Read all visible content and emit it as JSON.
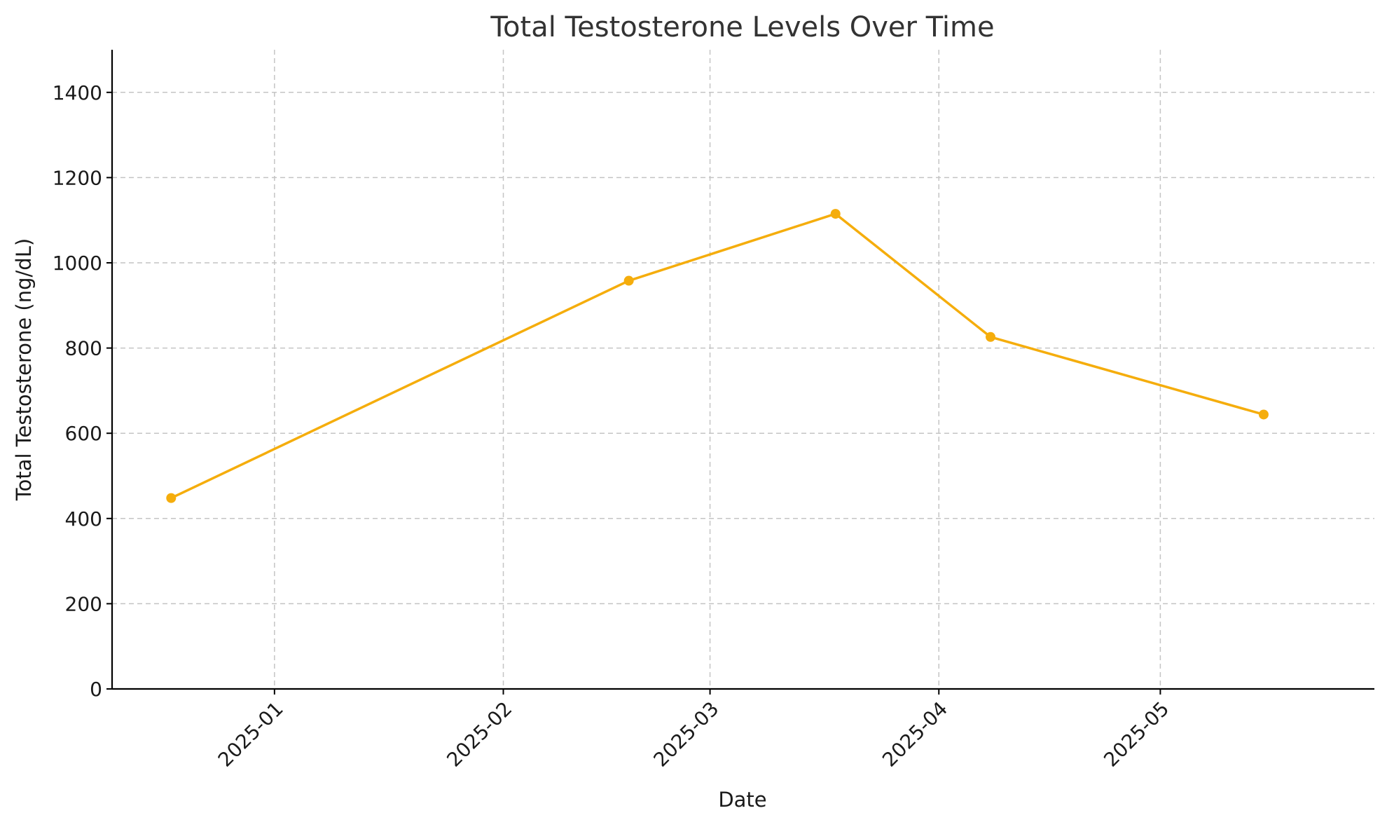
{
  "chart_data": {
    "type": "line",
    "title": "Total Testosterone Levels Over Time",
    "xlabel": "Date",
    "ylabel": "Total Testosterone (ng/dL)",
    "x_type": "date",
    "xlim": [
      "2024-12-10",
      "2025-05-30"
    ],
    "ylim": [
      0,
      1500
    ],
    "x_ticks": [
      "2025-01-01",
      "2025-02-01",
      "2025-03-01",
      "2025-04-01",
      "2025-05-01"
    ],
    "x_tick_labels": [
      "2025-01",
      "2025-02",
      "2025-03",
      "2025-04",
      "2025-05"
    ],
    "y_ticks": [
      0,
      200,
      400,
      600,
      800,
      1000,
      1200,
      1400
    ],
    "y_tick_labels": [
      "0",
      "200",
      "400",
      "600",
      "800",
      "1000",
      "1200",
      "1400"
    ],
    "grid": true,
    "series": [
      {
        "color": "#f5ad0c",
        "marker": "circle",
        "x": [
          "2024-12-18",
          "2025-02-18",
          "2025-03-18",
          "2025-04-08",
          "2025-05-15"
        ],
        "values": [
          448,
          958,
          1115,
          826,
          644
        ]
      }
    ]
  }
}
